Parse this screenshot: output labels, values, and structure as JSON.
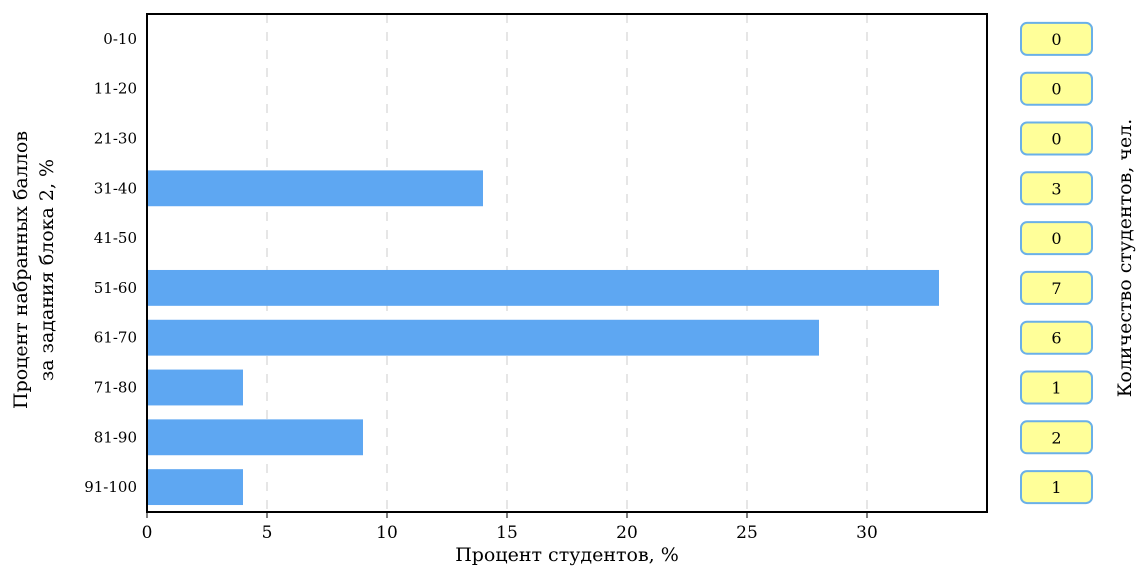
{
  "chart_data": {
    "type": "bar",
    "orientation": "horizontal",
    "categories": [
      "0-10",
      "11-20",
      "21-30",
      "31-40",
      "41-50",
      "51-60",
      "61-70",
      "71-80",
      "81-90",
      "91-100"
    ],
    "values": [
      0,
      0,
      0,
      14,
      0,
      33,
      28,
      4,
      9,
      4
    ],
    "counts": [
      0,
      0,
      0,
      3,
      0,
      7,
      6,
      1,
      2,
      1
    ],
    "xlabel": "Процент студентов, %",
    "ylabel_line1": "Процент набранных баллов",
    "ylabel_line2": "за задания блока 2, %",
    "counts_label": "Количество студентов, чел.",
    "xticks": [
      0,
      5,
      10,
      15,
      20,
      25,
      30
    ],
    "xlim": [
      0,
      35
    ],
    "grid": "vertical-dashed",
    "colors": {
      "bar": "#5ea7f2",
      "count_fill": "#ffff99",
      "count_border": "#6ab0e8",
      "grid": "#cccccc"
    }
  }
}
